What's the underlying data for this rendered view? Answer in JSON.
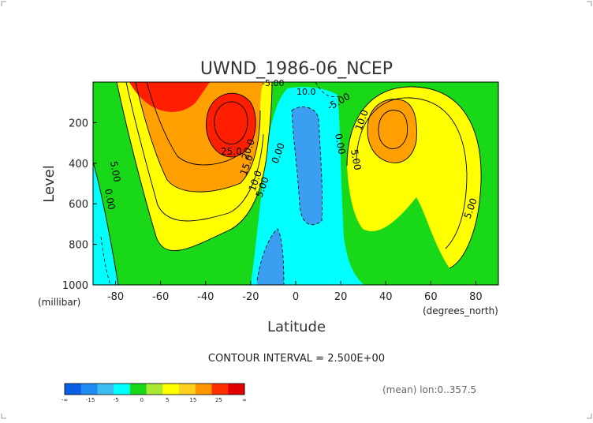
{
  "chart_data": {
    "type": "heatmap",
    "title": "UWND_1986-06_NCEP",
    "xlabel": "Latitude",
    "ylabel": "Level",
    "x_unit_label": "(degrees_north)",
    "y_unit_label": "(millibar)",
    "xlim": [
      -90,
      90
    ],
    "ylim": [
      1000,
      0
    ],
    "x_ticks": [
      "-80",
      "-60",
      "-40",
      "-20",
      "0",
      "20",
      "40",
      "60",
      "80"
    ],
    "y_ticks": [
      "200",
      "400",
      "600",
      "800",
      "1000"
    ],
    "contour_labels": [
      "5.00",
      "0.00",
      "25.0",
      "20.0",
      "15.0",
      "10.0",
      "5.00",
      "0.00",
      "-5.00",
      "10.0",
      "-5.00",
      "10.0",
      "0.00",
      "5.00",
      "5.00"
    ],
    "contour_interval_text": "CONTOUR INTERVAL = 2.500E+00",
    "colorbar": {
      "labels": [
        "-∞",
        "-15",
        "-5",
        "0",
        "5",
        "15",
        "25",
        "∞"
      ],
      "colors": [
        "#0a5ee6",
        "#1e8cf0",
        "#3cbef0",
        "#00ffff",
        "#18d818",
        "#a8e830",
        "#ffff00",
        "#ffd020",
        "#ff9600",
        "#ff3000",
        "#e00000"
      ]
    },
    "footnote": "(mean) lon:0..357.5",
    "level_colors": {
      "-10": "#2a84e8",
      "-5": "#40b8f0",
      "0": "#00ffff",
      "5": "#18d818",
      "10": "#ffff00",
      "15": "#ffd000",
      "20": "#ff9800",
      "25": "#ff2a00"
    }
  }
}
